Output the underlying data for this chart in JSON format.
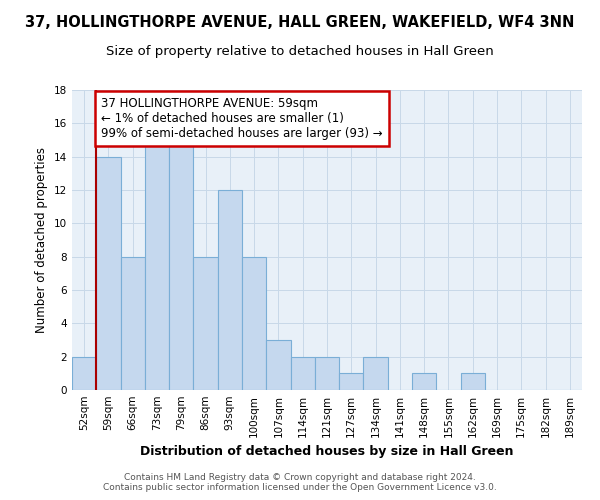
{
  "title": "37, HOLLINGTHORPE AVENUE, HALL GREEN, WAKEFIELD, WF4 3NN",
  "subtitle": "Size of property relative to detached houses in Hall Green",
  "xlabel": "Distribution of detached houses by size in Hall Green",
  "ylabel": "Number of detached properties",
  "categories": [
    "52sqm",
    "59sqm",
    "66sqm",
    "73sqm",
    "79sqm",
    "86sqm",
    "93sqm",
    "100sqm",
    "107sqm",
    "114sqm",
    "121sqm",
    "127sqm",
    "134sqm",
    "141sqm",
    "148sqm",
    "155sqm",
    "162sqm",
    "169sqm",
    "175sqm",
    "182sqm",
    "189sqm"
  ],
  "values": [
    2,
    14,
    8,
    15,
    15,
    8,
    12,
    8,
    3,
    2,
    2,
    1,
    2,
    0,
    1,
    0,
    1,
    0,
    0,
    0,
    0
  ],
  "bar_color": "#c5d8ee",
  "bar_edgecolor": "#7aaed6",
  "highlight_line_color": "#aa0000",
  "annotation_text_line1": "37 HOLLINGTHORPE AVENUE: 59sqm",
  "annotation_text_line2": "← 1% of detached houses are smaller (1)",
  "annotation_text_line3": "99% of semi-detached houses are larger (93) →",
  "annotation_box_facecolor": "#ffffff",
  "annotation_box_edgecolor": "#cc0000",
  "ylim": [
    0,
    18
  ],
  "yticks": [
    0,
    2,
    4,
    6,
    8,
    10,
    12,
    14,
    16,
    18
  ],
  "grid_color": "#c8d8e8",
  "background_color": "#e8f0f8",
  "footer_line1": "Contains HM Land Registry data © Crown copyright and database right 2024.",
  "footer_line2": "Contains public sector information licensed under the Open Government Licence v3.0.",
  "title_fontsize": 10.5,
  "subtitle_fontsize": 9.5,
  "xlabel_fontsize": 9,
  "ylabel_fontsize": 8.5,
  "tick_fontsize": 7.5,
  "footer_fontsize": 6.5,
  "annotation_fontsize": 8.5
}
